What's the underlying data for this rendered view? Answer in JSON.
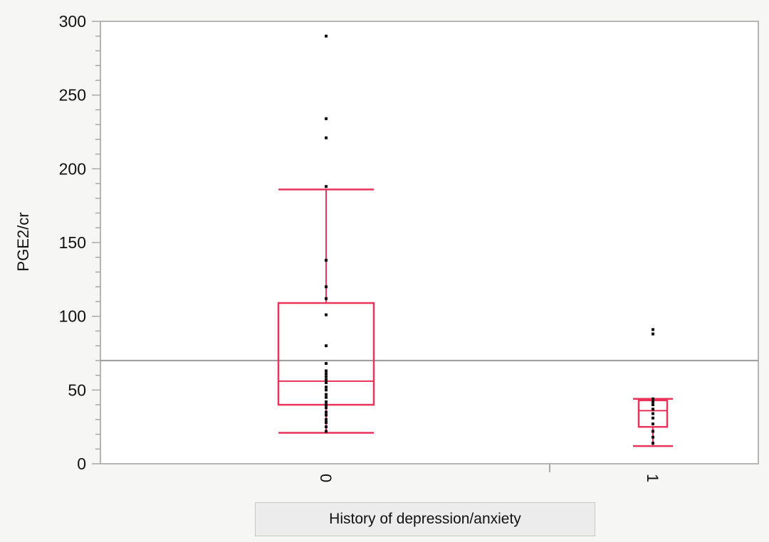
{
  "chart_data": {
    "type": "box",
    "xlabel": "History of depression/anxiety",
    "ylabel": "PGE2/cr",
    "ylim": [
      0,
      300
    ],
    "yticks": [
      0,
      50,
      100,
      150,
      200,
      250,
      300
    ],
    "categories": [
      "0",
      "1"
    ],
    "boxes": [
      {
        "category": "0",
        "whisker_low": 21,
        "q1": 40,
        "median": 56,
        "q3": 109,
        "whisker_high": 186,
        "points": [
          22,
          25,
          28,
          30,
          33,
          35,
          38,
          40,
          42,
          45,
          47,
          50,
          52,
          55,
          57,
          59,
          61,
          63,
          68,
          80,
          101,
          112,
          120,
          138,
          188,
          221,
          234,
          290
        ]
      },
      {
        "category": "1",
        "whisker_low": 12,
        "q1": 25,
        "median": 36,
        "q3": 43,
        "whisker_high": 44,
        "points": [
          14,
          18,
          22,
          27,
          31,
          34,
          37,
          40,
          42,
          44,
          88,
          91
        ]
      }
    ],
    "reference_line": 70,
    "colors": {
      "box": "#e8335a",
      "points": "#111111",
      "reference_line": "#9a9a9a",
      "axis": "#b5b5b5"
    }
  }
}
